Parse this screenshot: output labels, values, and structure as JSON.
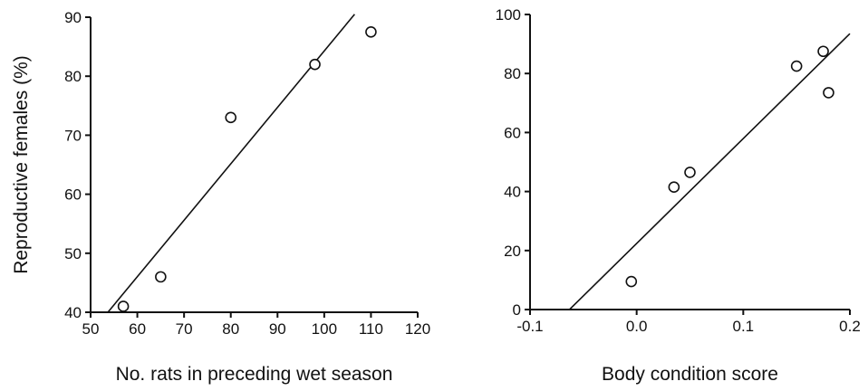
{
  "chart_data": [
    {
      "type": "scatter",
      "xlabel": "No. rats in preceding wet season",
      "ylabel": "Reproductive females (%)",
      "xlim": [
        50,
        120
      ],
      "ylim": [
        40,
        90
      ],
      "xticks": [
        50,
        60,
        70,
        80,
        90,
        100,
        110,
        120
      ],
      "yticks": [
        40,
        50,
        60,
        70,
        80,
        90
      ],
      "x": [
        57,
        65,
        80,
        98,
        110
      ],
      "y": [
        41,
        46,
        73,
        82,
        87.5
      ],
      "fit_line": {
        "x": [
          53.7,
          106.5
        ],
        "y": [
          40,
          90.5
        ]
      },
      "grid": false
    },
    {
      "type": "scatter",
      "xlabel": "Body condition score",
      "ylabel": "",
      "xlim": [
        -0.1,
        0.2
      ],
      "ylim": [
        0,
        100
      ],
      "xticks": [
        -0.1,
        0.0,
        0.1,
        0.2
      ],
      "xtick_labels": [
        "-0.1",
        "0.0",
        "0.1",
        "0.2"
      ],
      "yticks": [
        0,
        20,
        40,
        60,
        80,
        100
      ],
      "x": [
        -0.005,
        0.035,
        0.05,
        0.15,
        0.175,
        0.18
      ],
      "y": [
        9.5,
        41.5,
        46.5,
        82.5,
        87.5,
        73.5
      ],
      "fit_line": {
        "x": [
          -0.063,
          0.2
        ],
        "y": [
          0,
          93.5
        ]
      },
      "grid": false
    }
  ]
}
